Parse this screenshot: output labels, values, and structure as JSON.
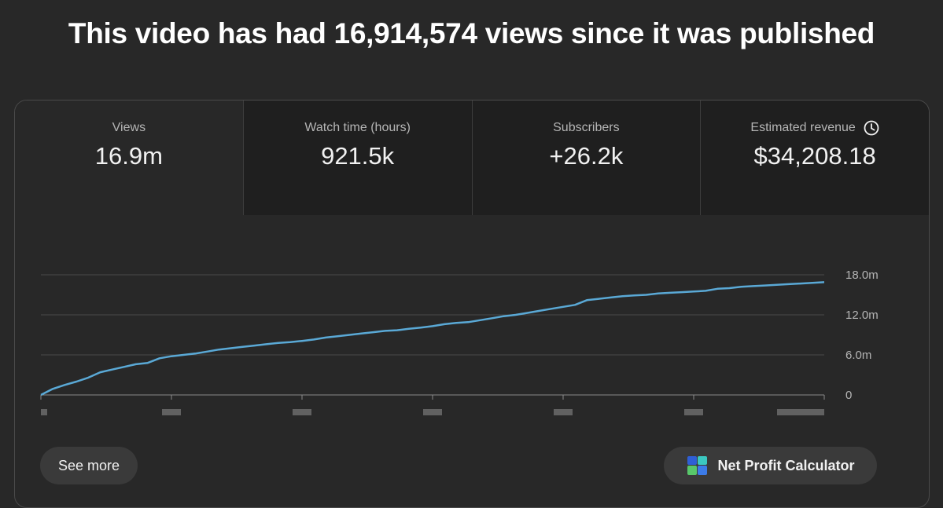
{
  "headline": "This video has had 16,914,574 views since it was published",
  "metrics": [
    {
      "label": "Views",
      "value": "16.9m"
    },
    {
      "label": "Watch time (hours)",
      "value": "921.5k"
    },
    {
      "label": "Subscribers",
      "value": "+26.2k"
    },
    {
      "label": "Estimated revenue",
      "value": "$34,208.18",
      "icon": "clock-icon"
    }
  ],
  "buttons": {
    "see_more": "See more",
    "net_profit": "Net Profit Calculator",
    "net_profit_icon": "nexlev-logo-icon"
  },
  "colors": {
    "line": "#5aa9d6",
    "background": "#282828"
  },
  "chart_data": {
    "type": "line",
    "y_ticks": [
      {
        "value": 0,
        "label": "0"
      },
      {
        "value": 6,
        "label": "6.0m"
      },
      {
        "value": 12,
        "label": "12.0m"
      },
      {
        "value": 18,
        "label": "18.0m"
      }
    ],
    "ylim": [
      0,
      18
    ],
    "ylabel": "",
    "xlabel": "",
    "x_tick_count": 7,
    "x_labels_redacted": true,
    "grid": true,
    "series": [
      {
        "values": [
          0.0,
          0.9,
          1.5,
          2.0,
          2.6,
          3.4,
          3.8,
          4.2,
          4.6,
          4.8,
          5.5,
          5.8,
          6.0,
          6.2,
          6.5,
          6.8,
          7.0,
          7.2,
          7.4,
          7.6,
          7.8,
          7.9,
          8.1,
          8.3,
          8.6,
          8.8,
          9.0,
          9.2,
          9.4,
          9.6,
          9.7,
          9.9,
          10.1,
          10.3,
          10.6,
          10.8,
          10.9,
          11.2,
          11.5,
          11.8,
          12.0,
          12.3,
          12.6,
          12.9,
          13.2,
          13.5,
          14.2,
          14.4,
          14.6,
          14.8,
          14.9,
          15.0,
          15.2,
          15.3,
          15.4,
          15.5,
          15.6,
          15.9,
          16.0,
          16.2,
          16.3,
          16.4,
          16.5,
          16.6,
          16.7,
          16.8,
          16.9
        ]
      }
    ]
  }
}
